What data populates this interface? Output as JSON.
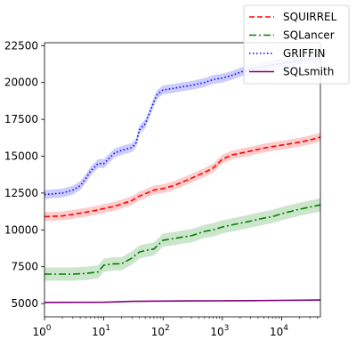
{
  "chart_data": {
    "type": "line",
    "title": "",
    "xlabel": "",
    "ylabel": "",
    "x_scale": "log",
    "xlim": [
      1,
      45000
    ],
    "ylim": [
      4100,
      22700
    ],
    "grid": false,
    "legend_position": "top-right",
    "x_ticks": [
      {
        "value": 1,
        "base": "10",
        "exp": "0"
      },
      {
        "value": 10,
        "base": "10",
        "exp": "1"
      },
      {
        "value": 100,
        "base": "10",
        "exp": "2"
      },
      {
        "value": 1000,
        "base": "10",
        "exp": "3"
      },
      {
        "value": 10000,
        "base": "10",
        "exp": "4"
      }
    ],
    "y_ticks": [
      {
        "value": 5000,
        "label": "5000"
      },
      {
        "value": 7500,
        "label": "7500"
      },
      {
        "value": 10000,
        "label": "10000"
      },
      {
        "value": 12500,
        "label": "12500"
      },
      {
        "value": 15000,
        "label": "15000"
      },
      {
        "value": 17500,
        "label": "17500"
      },
      {
        "value": 20000,
        "label": "20000"
      },
      {
        "value": 22500,
        "label": "22500"
      }
    ],
    "series": [
      {
        "name": "SQUIRREL",
        "color": "#ff0000",
        "style": "dashed",
        "band": 300,
        "x": [
          1,
          2,
          3,
          5,
          8,
          10,
          15,
          20,
          30,
          40,
          50,
          70,
          100,
          150,
          200,
          300,
          500,
          700,
          1000,
          1500,
          2000,
          3000,
          5000,
          7000,
          10000,
          20000,
          30000,
          45000
        ],
        "y": [
          10900,
          10950,
          11050,
          11200,
          11350,
          11450,
          11600,
          11750,
          12000,
          12300,
          12450,
          12700,
          12800,
          13000,
          13200,
          13500,
          13900,
          14200,
          14800,
          15100,
          15200,
          15350,
          15550,
          15650,
          15750,
          15950,
          16100,
          16300
        ]
      },
      {
        "name": "SQLancer",
        "color": "#008000",
        "style": "dashdot",
        "band": 450,
        "x": [
          1,
          2,
          3,
          5,
          8,
          10,
          15,
          20,
          30,
          40,
          50,
          70,
          100,
          150,
          200,
          300,
          500,
          700,
          1000,
          1500,
          2000,
          3000,
          5000,
          7000,
          10000,
          20000,
          30000,
          45000
        ],
        "y": [
          7000,
          7000,
          7000,
          7050,
          7150,
          7600,
          7700,
          7700,
          8100,
          8500,
          8600,
          8700,
          9300,
          9400,
          9500,
          9600,
          9900,
          10000,
          10200,
          10350,
          10450,
          10600,
          10800,
          10900,
          11100,
          11400,
          11550,
          11700
        ]
      },
      {
        "name": "GRIFFIN",
        "color": "#0000ff",
        "style": "dotted",
        "band": 300,
        "x": [
          1,
          2,
          3,
          4,
          5,
          6,
          8,
          10,
          15,
          20,
          25,
          30,
          35,
          40,
          50,
          60,
          70,
          80,
          100,
          150,
          200,
          300,
          500,
          700,
          1000,
          1500,
          2000,
          3000,
          5000,
          10000,
          20000,
          45000
        ],
        "y": [
          12400,
          12500,
          12700,
          13000,
          13500,
          14000,
          14500,
          14500,
          15200,
          15400,
          15500,
          15600,
          15900,
          16800,
          17200,
          18000,
          18700,
          19200,
          19500,
          19600,
          19700,
          19800,
          20000,
          20200,
          20300,
          20500,
          20700,
          20900,
          21100,
          21300,
          21500,
          21700
        ]
      },
      {
        "name": "SQLsmith",
        "color": "#800080",
        "style": "solid",
        "band": 40,
        "x": [
          1,
          10,
          30,
          100,
          300,
          1000,
          3000,
          10000,
          45000
        ],
        "y": [
          5080,
          5090,
          5150,
          5170,
          5180,
          5190,
          5200,
          5220,
          5240
        ]
      }
    ]
  }
}
